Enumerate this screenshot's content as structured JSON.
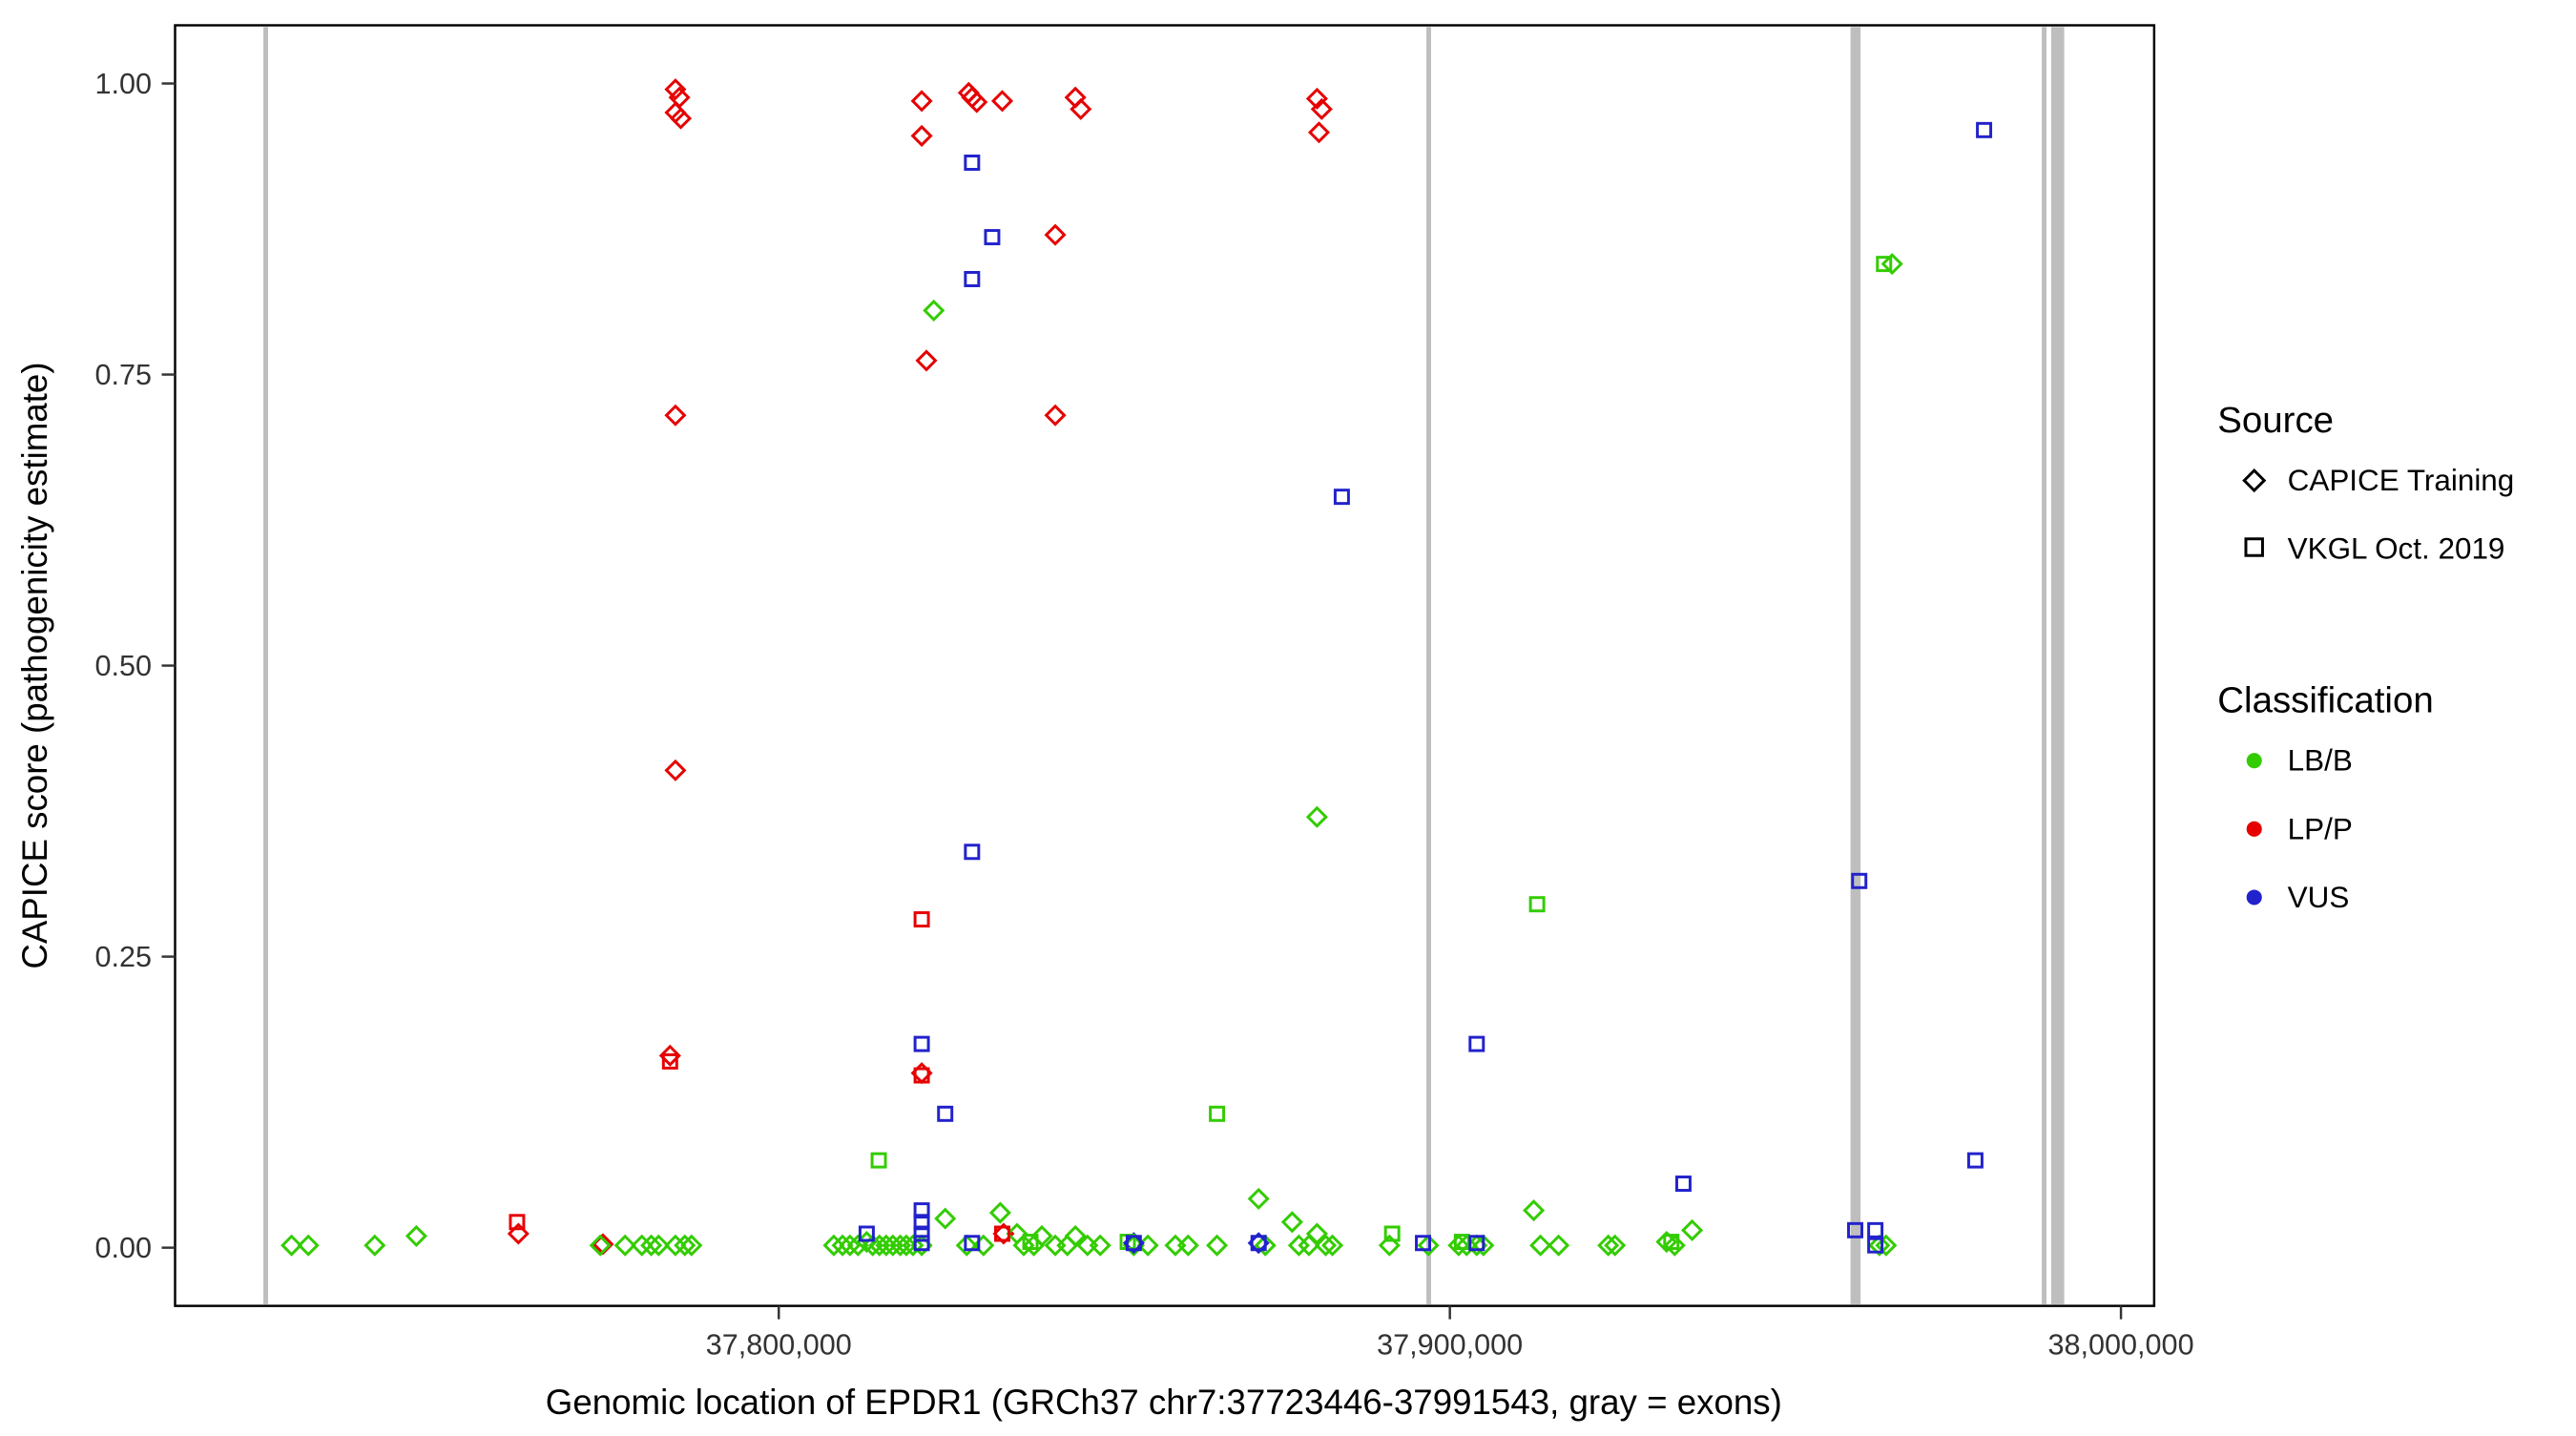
{
  "figure": {
    "background": "#FFFFFF",
    "panel_border_color": "#000000",
    "tick_color": "#333333"
  },
  "chart_data": {
    "type": "scatter",
    "title": "",
    "xlabel": "Genomic location of EPDR1 (GRCh37 chr7:37723446-37991543, gray = exons)",
    "ylabel": "CAPICE score (pathogenicity estimate)",
    "x_domain": [
      37710041,
      38004948
    ],
    "y_domain": [
      -0.05,
      1.05
    ],
    "grid": "off",
    "legend_position": "right",
    "x_ticks": [
      {
        "value": 37800000,
        "label": "37,800,000"
      },
      {
        "value": 37900000,
        "label": "37,900,000"
      },
      {
        "value": 38000000,
        "label": "38,000,000"
      }
    ],
    "y_ticks": [
      {
        "value": 0.0,
        "label": "0.00"
      },
      {
        "value": 0.25,
        "label": "0.25"
      },
      {
        "value": 0.5,
        "label": "0.50"
      },
      {
        "value": 0.75,
        "label": "0.75"
      },
      {
        "value": 1.0,
        "label": "1.00"
      }
    ],
    "exon_color": "#BEBEBE",
    "exons": [
      {
        "start": 37723200,
        "end": 37723900
      },
      {
        "start": 37896500,
        "end": 37897200
      },
      {
        "start": 37959700,
        "end": 37961200
      },
      {
        "start": 37988200,
        "end": 37988900
      },
      {
        "start": 37989600,
        "end": 37991543
      }
    ],
    "series": [
      {
        "name": "CAPICE Training / LP-P",
        "source": "CAPICE Training",
        "classification": "LP/P",
        "marker": "diamond",
        "color": "#E60000",
        "points": [
          [
            37784600,
            0.995
          ],
          [
            37785200,
            0.988
          ],
          [
            37784600,
            0.975
          ],
          [
            37785400,
            0.97
          ],
          [
            37784600,
            0.715
          ],
          [
            37784600,
            0.41
          ],
          [
            37783800,
            0.165
          ],
          [
            37821300,
            0.985
          ],
          [
            37821300,
            0.955
          ],
          [
            37822000,
            0.762
          ],
          [
            37828300,
            0.992
          ],
          [
            37828800,
            0.988
          ],
          [
            37829500,
            0.984
          ],
          [
            37833300,
            0.985
          ],
          [
            37833500,
            0.012
          ],
          [
            37841200,
            0.87
          ],
          [
            37841200,
            0.715
          ],
          [
            37844200,
            0.988
          ],
          [
            37845000,
            0.978
          ],
          [
            37880200,
            0.987
          ],
          [
            37880900,
            0.978
          ],
          [
            37880500,
            0.958
          ],
          [
            37821300,
            0.15
          ],
          [
            37761200,
            0.012
          ],
          [
            37773800,
            0.003
          ]
        ]
      },
      {
        "name": "CAPICE Training / LB-B",
        "source": "CAPICE Training",
        "classification": "LB/B",
        "marker": "diamond",
        "color": "#33CC00",
        "points": [
          [
            37823100,
            0.805
          ],
          [
            37880200,
            0.37
          ],
          [
            37965900,
            0.845
          ],
          [
            37727400,
            0.002
          ],
          [
            37729900,
            0.002
          ],
          [
            37739800,
            0.002
          ],
          [
            37746000,
            0.01
          ],
          [
            37773400,
            0.002
          ],
          [
            37777100,
            0.002
          ],
          [
            37779600,
            0.002
          ],
          [
            37781000,
            0.002
          ],
          [
            37782100,
            0.002
          ],
          [
            37784600,
            0.002
          ],
          [
            37786000,
            0.002
          ],
          [
            37787000,
            0.002
          ],
          [
            37808200,
            0.002
          ],
          [
            37809500,
            0.002
          ],
          [
            37810600,
            0.002
          ],
          [
            37811800,
            0.002
          ],
          [
            37813100,
            0.005
          ],
          [
            37814000,
            0.002
          ],
          [
            37815000,
            0.002
          ],
          [
            37816000,
            0.002
          ],
          [
            37817000,
            0.002
          ],
          [
            37818100,
            0.002
          ],
          [
            37819000,
            0.002
          ],
          [
            37820000,
            0.002
          ],
          [
            37821300,
            0.002
          ],
          [
            37824800,
            0.025
          ],
          [
            37828000,
            0.002
          ],
          [
            37830500,
            0.002
          ],
          [
            37833000,
            0.03
          ],
          [
            37835500,
            0.012
          ],
          [
            37836500,
            0.002
          ],
          [
            37838000,
            0.002
          ],
          [
            37839200,
            0.01
          ],
          [
            37841200,
            0.002
          ],
          [
            37843000,
            0.002
          ],
          [
            37844200,
            0.01
          ],
          [
            37846000,
            0.002
          ],
          [
            37847900,
            0.002
          ],
          [
            37852900,
            0.002
          ],
          [
            37855000,
            0.002
          ],
          [
            37859100,
            0.002
          ],
          [
            37861000,
            0.002
          ],
          [
            37865300,
            0.002
          ],
          [
            37871500,
            0.042
          ],
          [
            37872500,
            0.002
          ],
          [
            37876500,
            0.022
          ],
          [
            37877500,
            0.002
          ],
          [
            37879000,
            0.002
          ],
          [
            37880200,
            0.012
          ],
          [
            37881500,
            0.002
          ],
          [
            37882500,
            0.002
          ],
          [
            37891000,
            0.002
          ],
          [
            37896800,
            0.002
          ],
          [
            37901300,
            0.002
          ],
          [
            37902500,
            0.002
          ],
          [
            37904000,
            0.002
          ],
          [
            37905000,
            0.002
          ],
          [
            37912500,
            0.032
          ],
          [
            37913500,
            0.002
          ],
          [
            37916200,
            0.002
          ],
          [
            37923600,
            0.002
          ],
          [
            37924600,
            0.002
          ],
          [
            37932300,
            0.005
          ],
          [
            37933500,
            0.002
          ],
          [
            37936100,
            0.015
          ],
          [
            37964000,
            0.002
          ],
          [
            37965000,
            0.002
          ]
        ]
      },
      {
        "name": "CAPICE Training / VUS",
        "source": "CAPICE Training",
        "classification": "VUS",
        "marker": "diamond",
        "color": "#2222CC",
        "points": [
          [
            37871500,
            0.004
          ],
          [
            37852900,
            0.004
          ]
        ]
      },
      {
        "name": "VKGL Oct. 2019 / LP-P",
        "source": "VKGL Oct. 2019",
        "classification": "LP/P",
        "marker": "square",
        "color": "#E60000",
        "points": [
          [
            37783800,
            0.16
          ],
          [
            37821300,
            0.282
          ],
          [
            37821300,
            0.148
          ],
          [
            37761000,
            0.022
          ],
          [
            37833300,
            0.012
          ]
        ]
      },
      {
        "name": "VKGL Oct. 2019 / LB-B",
        "source": "VKGL Oct. 2019",
        "classification": "LB/B",
        "marker": "square",
        "color": "#33CC00",
        "points": [
          [
            37814900,
            0.075
          ],
          [
            37865300,
            0.115
          ],
          [
            37913000,
            0.295
          ],
          [
            37964700,
            0.845
          ],
          [
            37837500,
            0.005
          ],
          [
            37891400,
            0.012
          ],
          [
            37901800,
            0.005
          ],
          [
            37933000,
            0.005
          ],
          [
            37852000,
            0.005
          ]
        ]
      },
      {
        "name": "VKGL Oct. 2019 / VUS",
        "source": "VKGL Oct. 2019",
        "classification": "VUS",
        "marker": "square",
        "color": "#2222CC",
        "points": [
          [
            37828800,
            0.932
          ],
          [
            37831800,
            0.868
          ],
          [
            37828800,
            0.832
          ],
          [
            37883900,
            0.645
          ],
          [
            37828800,
            0.34
          ],
          [
            37821300,
            0.175
          ],
          [
            37824800,
            0.115
          ],
          [
            37904000,
            0.175
          ],
          [
            37961000,
            0.315
          ],
          [
            37979600,
            0.96
          ],
          [
            37978300,
            0.075
          ],
          [
            37934800,
            0.055
          ],
          [
            37821300,
            0.032
          ],
          [
            37821300,
            0.022
          ],
          [
            37821300,
            0.012
          ],
          [
            37821300,
            0.004
          ],
          [
            37813100,
            0.012
          ],
          [
            37828800,
            0.004
          ],
          [
            37852900,
            0.004
          ],
          [
            37871500,
            0.004
          ],
          [
            37904000,
            0.004
          ],
          [
            37960400,
            0.015
          ],
          [
            37963400,
            0.015
          ],
          [
            37963400,
            0.002
          ],
          [
            37896000,
            0.004
          ]
        ]
      }
    ]
  },
  "legend": {
    "source": {
      "title": "Source",
      "items": [
        {
          "label": "CAPICE Training",
          "marker": "diamond"
        },
        {
          "label": "VKGL Oct. 2019",
          "marker": "square"
        }
      ]
    },
    "classification": {
      "title": "Classification",
      "items": [
        {
          "label": "LB/B",
          "color": "#33CC00"
        },
        {
          "label": "LP/P",
          "color": "#E60000"
        },
        {
          "label": "VUS",
          "color": "#2222CC"
        }
      ]
    }
  }
}
